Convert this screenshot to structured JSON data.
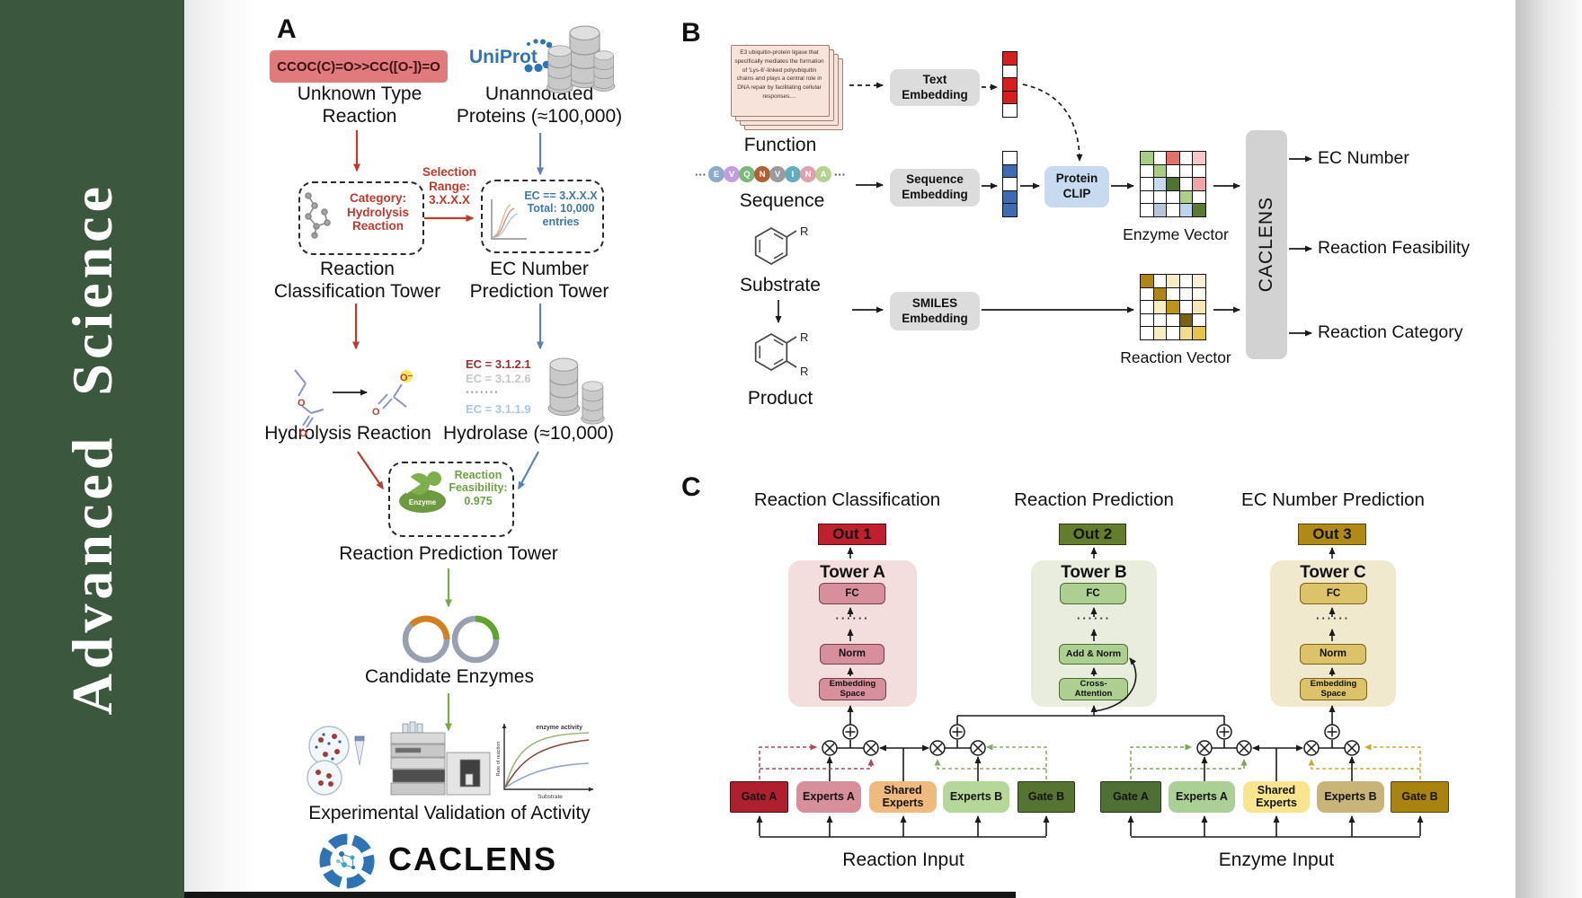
{
  "journal": {
    "name": "Advanced  Science",
    "bg": "#3b573d"
  },
  "panelA": {
    "label": "A",
    "smiles_box": {
      "text": "CCOC(C)=O>>CC([O-])=O",
      "bg": "#e17a7c"
    },
    "unknown_reaction": "Unknown Type\nReaction",
    "uniprot": "UniProt",
    "unannotated": "Unannotated\nProteins (≈100,000)",
    "selection": "Selection\nRange:\n3.X.X.X",
    "category_box": "Category:\nHydrolysis\nReaction",
    "ec_select_box": "EC == 3.X.X.X\nTotal: 10,000\nentries",
    "tower1": "Reaction\nClassification Tower",
    "tower2": "EC Number\nPrediction Tower",
    "hydrolysis": "Hydrolysis Reaction",
    "atom_o": "O",
    "atom_o_minus": "O⁻",
    "ec_list": [
      {
        "text": "EC = 3.1.2.1",
        "color": "#9e2b2b"
      },
      {
        "text": "EC = 3.1.2.6",
        "color": "#c6c6c6"
      },
      {
        "text": "·······",
        "color": "#8a8a8a"
      },
      {
        "text": "EC = 3.1.1.9",
        "color": "#a9c6e0"
      }
    ],
    "hydrolase": "Hydrolase (≈10,000)",
    "enzyme_icon_label": "Enzyme",
    "feasibility": "Reaction\nFeasibility:\n0.975",
    "tower3": "Reaction Prediction Tower",
    "candidates": "Candidate Enzymes",
    "validation": "Experimental Validation of Activity",
    "brand": "CACLENS",
    "graph": {
      "annotation": "enzyme activity",
      "ylabel": "Rate of reaction",
      "xlabel": "Substrate"
    }
  },
  "panelB": {
    "label": "B",
    "function_card": "E3 ubiquitin-protein ligase that specifically mediates the formation of 'Lys-6'-linked polyubiquitin chains and plays a central role in DNA repair by facilitating cellular responses....",
    "function_label": "Function",
    "ellipsis": "···",
    "residues": [
      {
        "letter": "E",
        "color": "#8ea9c9"
      },
      {
        "letter": "V",
        "color": "#c49fdf"
      },
      {
        "letter": "Q",
        "color": "#7cb87c"
      },
      {
        "letter": "N",
        "color": "#b45f2f"
      },
      {
        "letter": "V",
        "color": "#9b9b9b"
      },
      {
        "letter": "I",
        "color": "#62aebe"
      },
      {
        "letter": "N",
        "color": "#e2a0ae"
      },
      {
        "letter": "A",
        "color": "#b5d290"
      }
    ],
    "sequence_label": "Sequence",
    "substrate_label": "Substrate",
    "product_label": "Product",
    "r_label": "R",
    "text_embedding": "Text\nEmbedding",
    "sequence_embedding": "Sequence\nEmbedding",
    "smiles_embedding": "SMILES\nEmbedding",
    "protein_clip": "Protein\nCLIP",
    "text_vector": [
      "#d42020",
      "#ffffff",
      "#d42020",
      "#d42020",
      "#ffffff"
    ],
    "sequence_vector": [
      "#ffffff",
      "#3f6bb0",
      "#ffffff",
      "#3f6bb0",
      "#3f6bb0"
    ],
    "enzyme_matrix": [
      [
        "#a9cc83",
        "#ffffff",
        "#e2716b",
        "#ffffff",
        "#f5c8cd"
      ],
      [
        "#ffffff",
        "#a9cc83",
        "#ffffff",
        "#ffffff",
        "#ffffff"
      ],
      [
        "#ffffff",
        "#c9daf0",
        "#4d7231",
        "#ffffff",
        "#eda5a5"
      ],
      [
        "#ffffff",
        "#ffffff",
        "#ffffff",
        "#aed18a",
        "#ffffff"
      ],
      [
        "#ffffff",
        "#b9c6d8",
        "#ffffff",
        "#bdd4ee",
        "#5a7a33"
      ]
    ],
    "reaction_matrix": [
      [
        "#b08514",
        "#ffffff",
        "#f6edc4",
        "#ffffff",
        "#f8f0d4"
      ],
      [
        "#ffffff",
        "#b08514",
        "#ffffff",
        "#ffffff",
        "#fdfaf0"
      ],
      [
        "#ffffff",
        "#f6edc4",
        "#bf9313",
        "#ffffff",
        "#f3e7b8"
      ],
      [
        "#ffffff",
        "#ffffff",
        "#ffffff",
        "#7a6210",
        "#ffffff"
      ],
      [
        "#ffffff",
        "#f6edc4",
        "#ffffff",
        "#f0dd8a",
        "#e3c44d"
      ]
    ],
    "enzyme_vector_label": "Enzyme Vector",
    "reaction_vector_label": "Reaction Vector",
    "caclens_bar": "CACLENS",
    "outputs": [
      "EC Number",
      "Reaction Feasibility",
      "Reaction Category"
    ]
  },
  "panelC": {
    "label": "C",
    "columns": [
      {
        "header": "Reaction Classification",
        "out": {
          "label": "Out 1",
          "bg": "#bf1f2f",
          "border": "#550d14"
        },
        "tower_title": "Tower A",
        "dots": "······",
        "blocks": [
          "FC",
          "Norm",
          "Embedding\nSpace"
        ]
      },
      {
        "header": "Reaction Prediction",
        "out": {
          "label": "Out 2",
          "bg": "#647d2b",
          "border": "#2c3a12"
        },
        "tower_title": "Tower B",
        "dots": "······",
        "blocks": [
          "FC",
          "Add & Norm",
          "Cross-\nAttention"
        ]
      },
      {
        "header": "EC Number Prediction",
        "out": {
          "label": "Out 3",
          "bg": "#b08a14",
          "border": "#57430a"
        },
        "tower_title": "Tower C",
        "dots": "······",
        "blocks": [
          "FC",
          "Norm",
          "Embedding\nSpace"
        ]
      }
    ],
    "moe_left": {
      "label": "Reaction Input",
      "boxes": [
        {
          "label": "Gate A",
          "bg": "#ae202e",
          "border": "#4a0d14"
        },
        {
          "label": "Experts A",
          "bg": "#d78f9c"
        },
        {
          "label": "Shared\nExperts",
          "bg": "#f0b97e"
        },
        {
          "label": "Experts B",
          "bg": "#b6d79a"
        },
        {
          "label": "Gate B",
          "bg": "#567431",
          "border": "#263612"
        }
      ]
    },
    "moe_right": {
      "label": "Enzyme Input",
      "boxes": [
        {
          "label": "Gate A",
          "bg": "#4f7034",
          "border": "#233314"
        },
        {
          "label": "Experts A",
          "bg": "#abd096"
        },
        {
          "label": "Shared\nExperts",
          "bg": "#f8e58e"
        },
        {
          "label": "Experts B",
          "bg": "#c9b478"
        },
        {
          "label": "Gate B",
          "bg": "#a8830e",
          "border": "#574208"
        }
      ]
    }
  },
  "colors": {
    "arrow_red": "#c0392b",
    "arrow_blue": "#5b84b1",
    "arrow_green": "#7aa845",
    "sidebar_green": "#3b573d",
    "uniprot_blue": "#2e74b5"
  }
}
